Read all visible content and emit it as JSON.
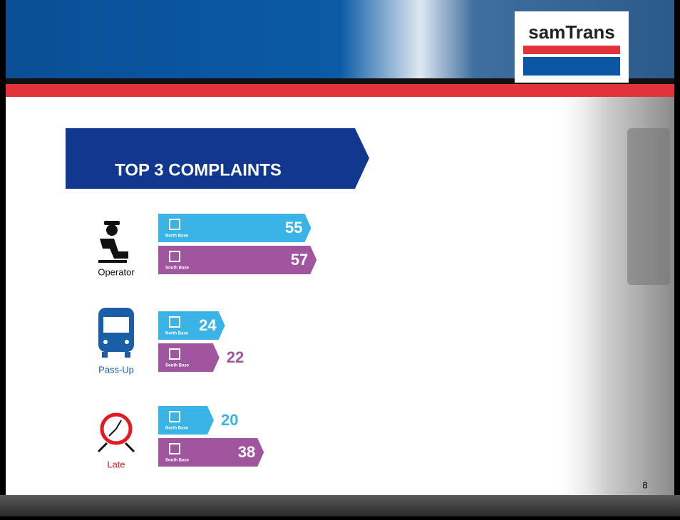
{
  "logo": "samTrans",
  "page_number": "8",
  "chart_data": {
    "type": "bar",
    "title": "TOP 3 COMPLAINTS",
    "categories": [
      "Operator",
      "Pass-Up",
      "Late"
    ],
    "series": [
      {
        "name": "North Base",
        "color": "#3ab4e6",
        "values": [
          55,
          24,
          20
        ]
      },
      {
        "name": "South Base",
        "color": "#a0559f",
        "values": [
          57,
          22,
          38
        ]
      }
    ]
  }
}
